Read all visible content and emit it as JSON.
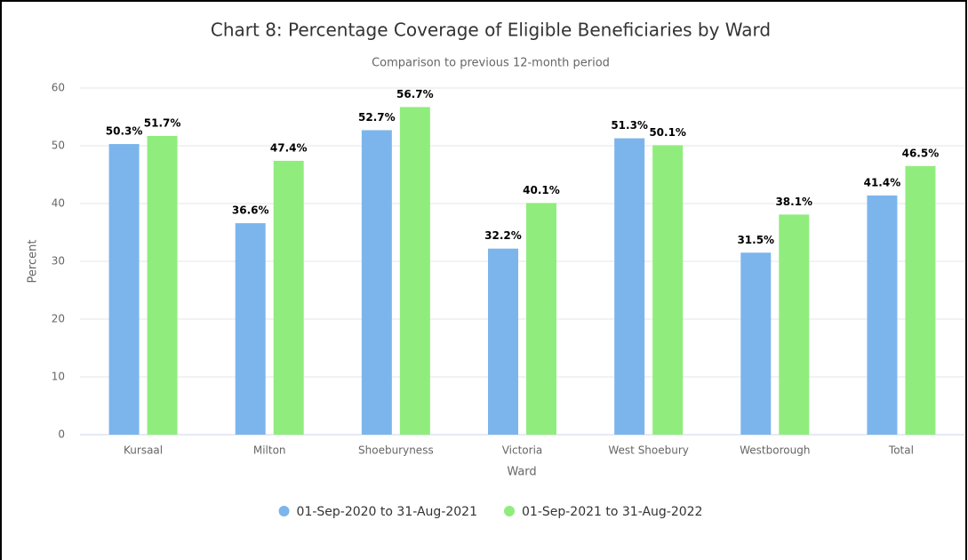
{
  "chart_data": {
    "type": "bar",
    "title": "Chart 8: Percentage Coverage of Eligible Beneficiaries by Ward",
    "subtitle": "Comparison to previous 12-month period",
    "x_label": "Ward",
    "y_label": "Percent",
    "categories": [
      "Kursaal",
      "Milton",
      "Shoeburyness",
      "Victoria",
      "West Shoebury",
      "Westborough",
      "Total"
    ],
    "series": [
      {
        "name": "01-Sep-2020 to 31-Aug-2021",
        "color": "#7cb5ec",
        "values": [
          50.3,
          36.6,
          52.7,
          32.2,
          51.3,
          31.5,
          41.4
        ],
        "value_labels": [
          "50.3%",
          "36.6%",
          "52.7%",
          "32.2%",
          "51.3%",
          "31.5%",
          "41.4%"
        ]
      },
      {
        "name": "01-Sep-2021 to 31-Aug-2022",
        "color": "#90ed7d",
        "values": [
          51.7,
          47.4,
          56.7,
          40.1,
          50.1,
          38.1,
          46.5
        ],
        "value_labels": [
          "51.7%",
          "47.4%",
          "56.7%",
          "40.1%",
          "50.1%",
          "38.1%",
          "46.5%"
        ]
      }
    ],
    "ylim": [
      0,
      60
    ],
    "yticks": [
      0,
      10,
      20,
      30,
      40,
      50,
      60
    ],
    "grid": true,
    "legend": "bottom"
  }
}
